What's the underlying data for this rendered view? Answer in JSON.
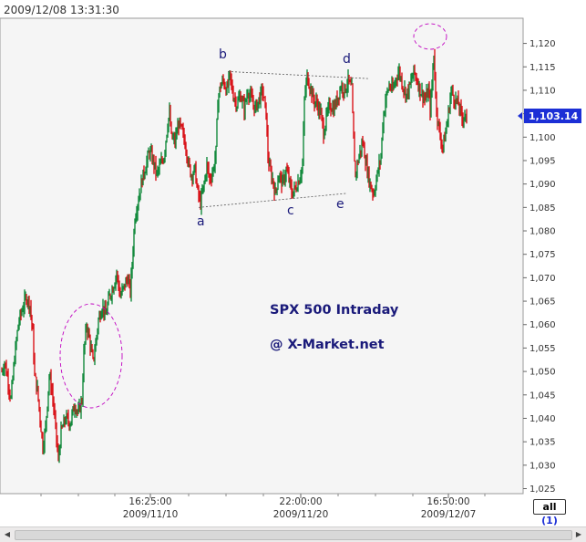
{
  "timestamp": "2009/12/08 13:31:30",
  "chart_data": {
    "type": "candlestick",
    "title": "SPX 500 Intraday",
    "subtitle": "@ X-Market.net",
    "y_ticks": [
      "1,025",
      "1,030",
      "1,035",
      "1,040",
      "1,045",
      "1,050",
      "1,055",
      "1,060",
      "1,065",
      "1,070",
      "1,075",
      "1,080",
      "1,085",
      "1,090",
      "1,095",
      "1,100",
      "1,105",
      "1,110",
      "1,115",
      "1,120"
    ],
    "ylim": [
      1025,
      1123
    ],
    "x_ticks": [
      {
        "time": "16:25:00",
        "date": "2009/11/10"
      },
      {
        "time": "22:00:00",
        "date": "2009/11/20"
      },
      {
        "time": "16:50:00",
        "date": "2009/12/07"
      }
    ],
    "last_price": "1,103.14",
    "last_value": 1103.14,
    "wave_labels": [
      {
        "label": "a",
        "value": 1084
      },
      {
        "label": "b",
        "value": 1114
      },
      {
        "label": "c",
        "value": 1087
      },
      {
        "label": "d",
        "value": 1113
      },
      {
        "label": "e",
        "value": 1088
      }
    ],
    "trend_lines": [
      {
        "from": "b",
        "to": "d",
        "values": [
          1114,
          1112.5
        ]
      },
      {
        "from": "a",
        "to": "e",
        "values": [
          1085,
          1088
        ]
      }
    ],
    "path": [
      [
        0,
        1050
      ],
      [
        3,
        1052
      ],
      [
        6,
        1049
      ],
      [
        10,
        1044
      ],
      [
        14,
        1053
      ],
      [
        18,
        1060
      ],
      [
        22,
        1063
      ],
      [
        27,
        1066
      ],
      [
        31,
        1064
      ],
      [
        34,
        1058
      ],
      [
        36,
        1049
      ],
      [
        39,
        1046
      ],
      [
        42,
        1040
      ],
      [
        45,
        1034
      ],
      [
        48,
        1038
      ],
      [
        52,
        1049
      ],
      [
        55,
        1046
      ],
      [
        58,
        1040
      ],
      [
        62,
        1031
      ],
      [
        65,
        1037
      ],
      [
        70,
        1040
      ],
      [
        75,
        1039
      ],
      [
        80,
        1043
      ],
      [
        84,
        1041
      ],
      [
        88,
        1044
      ],
      [
        90,
        1054
      ],
      [
        93,
        1060
      ],
      [
        96,
        1057
      ],
      [
        100,
        1052
      ],
      [
        103,
        1056
      ],
      [
        106,
        1061
      ],
      [
        110,
        1064
      ],
      [
        114,
        1062
      ],
      [
        118,
        1066
      ],
      [
        122,
        1068
      ],
      [
        126,
        1071
      ],
      [
        130,
        1066
      ],
      [
        134,
        1068
      ],
      [
        138,
        1070
      ],
      [
        141,
        1067
      ],
      [
        143,
        1073
      ],
      [
        146,
        1083
      ],
      [
        150,
        1087
      ],
      [
        154,
        1091
      ],
      [
        158,
        1094
      ],
      [
        162,
        1097
      ],
      [
        166,
        1095
      ],
      [
        170,
        1092
      ],
      [
        174,
        1094
      ],
      [
        178,
        1096
      ],
      [
        182,
        1103
      ],
      [
        184,
        1105
      ],
      [
        186,
        1100
      ],
      [
        190,
        1099
      ],
      [
        194,
        1103
      ],
      [
        198,
        1101
      ],
      [
        202,
        1098
      ],
      [
        205,
        1094
      ],
      [
        208,
        1092
      ],
      [
        212,
        1093
      ],
      [
        215,
        1088
      ],
      [
        218,
        1086
      ],
      [
        222,
        1090
      ],
      [
        225,
        1094
      ],
      [
        228,
        1091
      ],
      [
        232,
        1093
      ],
      [
        235,
        1097
      ],
      [
        237,
        1108
      ],
      [
        240,
        1111
      ],
      [
        243,
        1112
      ],
      [
        247,
        1110
      ],
      [
        250,
        1113
      ],
      [
        254,
        1109
      ],
      [
        258,
        1107
      ],
      [
        262,
        1109
      ],
      [
        266,
        1106
      ],
      [
        270,
        1110
      ],
      [
        274,
        1108
      ],
      [
        278,
        1106
      ],
      [
        282,
        1108
      ],
      [
        286,
        1110
      ],
      [
        290,
        1105
      ],
      [
        292,
        1096
      ],
      [
        294,
        1093
      ],
      [
        297,
        1091
      ],
      [
        300,
        1088
      ],
      [
        304,
        1092
      ],
      [
        308,
        1090
      ],
      [
        312,
        1093
      ],
      [
        315,
        1091
      ],
      [
        318,
        1088
      ],
      [
        322,
        1089
      ],
      [
        326,
        1091
      ],
      [
        330,
        1094
      ],
      [
        332,
        1108
      ],
      [
        335,
        1113
      ],
      [
        338,
        1111
      ],
      [
        342,
        1108
      ],
      [
        346,
        1107
      ],
      [
        350,
        1105
      ],
      [
        353,
        1101
      ],
      [
        356,
        1104
      ],
      [
        360,
        1107
      ],
      [
        364,
        1106
      ],
      [
        368,
        1108
      ],
      [
        372,
        1111
      ],
      [
        376,
        1110
      ],
      [
        380,
        1112
      ],
      [
        384,
        1110
      ],
      [
        386,
        1099
      ],
      [
        388,
        1092
      ],
      [
        392,
        1096
      ],
      [
        396,
        1099
      ],
      [
        400,
        1094
      ],
      [
        404,
        1090
      ],
      [
        408,
        1088
      ],
      [
        412,
        1092
      ],
      [
        416,
        1096
      ],
      [
        418,
        1103
      ],
      [
        421,
        1108
      ],
      [
        425,
        1111
      ],
      [
        429,
        1110
      ],
      [
        433,
        1113
      ],
      [
        436,
        1114
      ],
      [
        440,
        1111
      ],
      [
        444,
        1109
      ],
      [
        448,
        1111
      ],
      [
        452,
        1114
      ],
      [
        456,
        1112
      ],
      [
        459,
        1110
      ],
      [
        462,
        1109
      ],
      [
        465,
        1108
      ],
      [
        468,
        1110
      ],
      [
        470,
        1106
      ],
      [
        472,
        1111
      ],
      [
        474,
        1118
      ],
      [
        476,
        1109
      ],
      [
        478,
        1104
      ],
      [
        481,
        1100
      ],
      [
        484,
        1098
      ],
      [
        487,
        1101
      ],
      [
        490,
        1105
      ],
      [
        493,
        1110
      ],
      [
        497,
        1108
      ],
      [
        501,
        1107
      ],
      [
        505,
        1104
      ],
      [
        508,
        1105
      ],
      [
        510,
        1103
      ]
    ]
  },
  "filter_button": {
    "label": "all",
    "count": "(1)"
  },
  "scrollbar": {
    "left_icon": "triangle-left-icon",
    "right_icon": "triangle-right-icon"
  }
}
